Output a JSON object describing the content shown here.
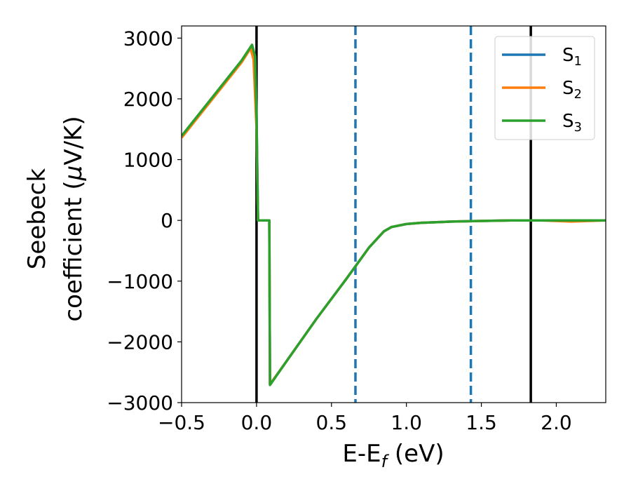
{
  "chart_data": {
    "type": "line",
    "xlabel": "E-E",
    "xlabel_sub": "f",
    "xlabel_unit": " (eV)",
    "ylabel_line1": "Seebeck",
    "ylabel_line2": "coefficient  (",
    "ylabel_mu": "μ",
    "ylabel_unit": "V/K)",
    "xlim": [
      -0.5,
      2.33
    ],
    "ylim": [
      -3000,
      3200
    ],
    "xticks": [
      -0.5,
      0.0,
      0.5,
      1.0,
      1.5,
      2.0
    ],
    "xtick_labels": [
      "−0.5",
      "0.0",
      "0.5",
      "1.0",
      "1.5",
      "2.0"
    ],
    "yticks": [
      -3000,
      -2000,
      -1000,
      0,
      1000,
      2000,
      3000
    ],
    "ytick_labels": [
      "−3000",
      "−2000",
      "−1000",
      "0",
      "1000",
      "2000",
      "3000"
    ],
    "legend_position": "top-right",
    "vlines": [
      {
        "x": 0.0,
        "style": "solid",
        "color": "#000000"
      },
      {
        "x": 1.83,
        "style": "solid",
        "color": "#000000"
      },
      {
        "x": 0.66,
        "style": "dashed",
        "color": "#1f77b4"
      },
      {
        "x": 1.43,
        "style": "dashed",
        "color": "#1f77b4"
      }
    ],
    "series": [
      {
        "name": "S",
        "sub": "1",
        "color": "#1f77b4",
        "x": [
          -0.5,
          -0.3,
          -0.1,
          -0.03,
          -0.01,
          0.0,
          0.01,
          0.02,
          0.05,
          0.085,
          0.09,
          0.2,
          0.4,
          0.6,
          0.75,
          0.85,
          0.9,
          1.0,
          1.1,
          1.3,
          1.5,
          1.7,
          1.9,
          2.1,
          2.33
        ],
        "y": [
          1380,
          2000,
          2620,
          2880,
          2700,
          1700,
          0,
          0,
          0,
          0,
          -2700,
          -2320,
          -1620,
          -960,
          -450,
          -180,
          -110,
          -60,
          -40,
          -20,
          -10,
          0,
          0,
          0,
          0
        ]
      },
      {
        "name": "S",
        "sub": "2",
        "color": "#ff7f0e",
        "x": [
          -0.5,
          -0.3,
          -0.1,
          -0.04,
          -0.02,
          0.0,
          0.01,
          0.02,
          0.05,
          0.085,
          0.09,
          0.2,
          0.4,
          0.6,
          0.75,
          0.85,
          0.9,
          1.0,
          1.1,
          1.3,
          1.5,
          1.7,
          1.9,
          2.1,
          2.33
        ],
        "y": [
          1360,
          1980,
          2600,
          2830,
          2650,
          1500,
          0,
          0,
          0,
          0,
          -2700,
          -2320,
          -1620,
          -960,
          -450,
          -180,
          -110,
          -60,
          -40,
          -20,
          -10,
          0,
          0,
          -20,
          0
        ]
      },
      {
        "name": "S",
        "sub": "3",
        "color": "#2ca02c",
        "x": [
          -0.5,
          -0.3,
          -0.1,
          -0.03,
          -0.01,
          0.0,
          0.01,
          0.02,
          0.05,
          0.085,
          0.09,
          0.2,
          0.4,
          0.6,
          0.75,
          0.85,
          0.9,
          1.0,
          1.1,
          1.3,
          1.5,
          1.7,
          1.9,
          2.1,
          2.33
        ],
        "y": [
          1390,
          2010,
          2630,
          2890,
          2700,
          1700,
          0,
          0,
          0,
          0,
          -2710,
          -2320,
          -1620,
          -960,
          -450,
          -180,
          -110,
          -60,
          -40,
          -20,
          -10,
          0,
          0,
          0,
          0
        ]
      }
    ]
  }
}
